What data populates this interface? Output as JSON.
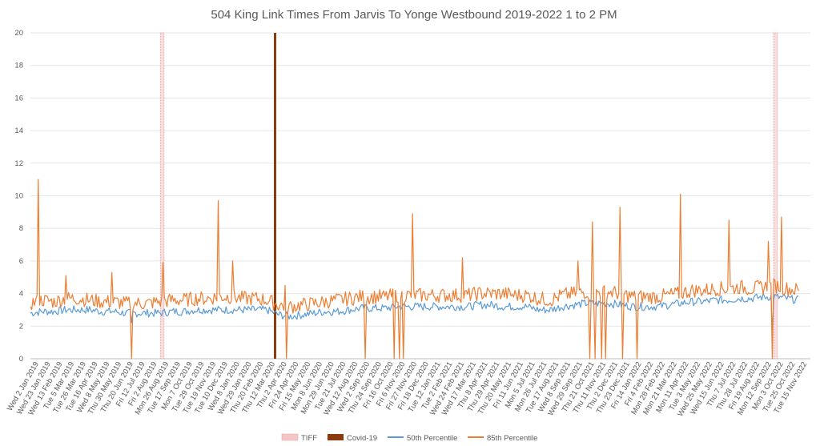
{
  "chart_data": {
    "type": "line",
    "title": "504 King Link Times From Jarvis To Yonge Westbound 2019-2022 1 to 2 PM",
    "xlabel": "",
    "ylabel": "",
    "ylim": [
      0,
      20
    ],
    "yticks": [
      "0",
      "2",
      "4",
      "6",
      "8",
      "10",
      "12",
      "14",
      "16",
      "18",
      "20"
    ],
    "grid": "horizontal",
    "legend": "bottom",
    "x_tick_labels": [
      "Wed 2 Jan 2019",
      "Wed 23 Jan 2019",
      "Wed 13 Feb 2019",
      "Tue 5 Mar 2019",
      "Tue 26 Mar 2019",
      "Tue 16 Apr 2019",
      "Wed 8 May 2019",
      "Thu 30 May 2019",
      "Thu 20 Jun 2019",
      "Fri 12 Jul 2019",
      "Fri 2 Aug 2019",
      "Mon 26 Aug 2019",
      "Tue 17 Sep 2019",
      "Mon 7 Oct 2019",
      "Tue 29 Oct 2019",
      "Tue 19 Nov 2019",
      "Tue 10 Dec 2019",
      "Wed 8 Jan 2020",
      "Wed 29 Jan 2020",
      "Thu 20 Feb 2020",
      "Thu 12 Mar 2020",
      "Thu 2 Apr 2020",
      "Fri 24 Apr 2020",
      "Fri 15 May 2020",
      "Mon 8 Jun 2020",
      "Mon 29 Jun 2020",
      "Tue 21 Jul 2020",
      "Wed 12 Aug 2020",
      "Wed 2 Sep 2020",
      "Thu 24 Sep 2020",
      "Fri 16 Oct 2020",
      "Fri 6 Nov 2020",
      "Fri 27 Nov 2020",
      "Fri 18 Dec 2020",
      "Tue 12 Jan 2021",
      "Tue 2 Feb 2021",
      "Wed 24 Feb 2021",
      "Wed 17 Mar 2021",
      "Thu 8 Apr 2021",
      "Thu 29 Apr 2021",
      "Thu 20 May 2021",
      "Fri 11 Jun 2021",
      "Mon 5 Jul 2021",
      "Mon 26 Jul 2021",
      "Tue 17 Aug 2021",
      "Wed 8 Sep 2021",
      "Wed 29 Sep 2021",
      "Thu 21 Oct 2021",
      "Thu 11 Nov 2021",
      "Thu 2 Dec 2021",
      "Thu 23 Dec 2021",
      "Fri 14 Jan 2022",
      "Fri 4 Feb 2022",
      "Mon 28 Feb 2022",
      "Mon 21 Mar 2022",
      "Mon 11 Apr 2022",
      "Tue 3 May 2022",
      "Wed 25 May 2022",
      "Wed 15 Jun 2022",
      "Thu 7 Jul 2022",
      "Thu 28 Jul 2022",
      "Fri 19 Aug 2022",
      "Mon 12 Sep 2022",
      "Mon 3 Oct 2022",
      "Tue 25 Oct 2022",
      "Tue 15 Nov 2022"
    ],
    "markers": [
      {
        "name": "TIFF",
        "color": "#e8a0a0",
        "x_from_tick": 11.0,
        "x_to_tick": 11.3
      },
      {
        "name": "TIFF",
        "color": "#e8a0a0",
        "x_from_tick": 62.9,
        "x_to_tick": 63.2
      },
      {
        "name": "Covid-19",
        "color": "#8b3a0e",
        "x_tick": 20.7
      }
    ],
    "series": [
      {
        "name": "50th Percentile",
        "color": "#5b9bd5",
        "mean": 2.9,
        "values_by_tick": [
          2.8,
          2.9,
          2.9,
          3.0,
          3.0,
          3.0,
          2.9,
          2.9,
          2.8,
          2.8,
          2.8,
          2.8,
          2.9,
          2.9,
          3.0,
          3.0,
          3.0,
          3.0,
          3.0,
          3.0,
          3.0,
          2.7,
          2.6,
          2.7,
          2.8,
          2.9,
          2.9,
          3.0,
          3.1,
          3.1,
          3.1,
          3.2,
          3.2,
          3.2,
          3.2,
          3.2,
          3.2,
          3.2,
          3.3,
          3.3,
          3.2,
          3.2,
          3.2,
          3.0,
          3.0,
          3.2,
          3.3,
          3.4,
          3.4,
          3.4,
          3.3,
          3.2,
          3.2,
          3.2,
          3.3,
          3.4,
          3.5,
          3.5,
          3.6,
          3.6,
          3.7,
          3.7,
          3.8,
          3.8,
          3.7,
          3.6
        ]
      },
      {
        "name": "85th Percentile",
        "color": "#ed7d31",
        "values_by_tick": [
          3.4,
          3.6,
          3.5,
          3.7,
          3.7,
          3.6,
          3.5,
          3.5,
          3.4,
          3.4,
          3.4,
          3.5,
          3.6,
          3.6,
          3.7,
          3.7,
          3.8,
          3.8,
          3.7,
          3.7,
          3.6,
          3.3,
          3.2,
          3.3,
          3.4,
          3.5,
          3.6,
          3.7,
          3.8,
          3.8,
          3.8,
          3.9,
          3.9,
          3.9,
          3.9,
          3.9,
          3.9,
          3.9,
          4.0,
          4.0,
          4.0,
          3.9,
          3.9,
          3.7,
          3.6,
          3.9,
          4.0,
          4.1,
          4.1,
          4.1,
          4.0,
          3.8,
          3.8,
          3.8,
          3.9,
          4.0,
          4.2,
          4.2,
          4.3,
          4.3,
          4.4,
          4.3,
          4.4,
          4.5,
          4.3,
          4.2
        ],
        "spikes": [
          {
            "x_tick": 0.7,
            "value": 11.0
          },
          {
            "x_tick": 3.0,
            "value": 5.1
          },
          {
            "x_tick": 6.9,
            "value": 5.3
          },
          {
            "x_tick": 11.2,
            "value": 5.9
          },
          {
            "x_tick": 15.9,
            "value": 9.7
          },
          {
            "x_tick": 17.1,
            "value": 6.0
          },
          {
            "x_tick": 21.6,
            "value": 4.5
          },
          {
            "x_tick": 32.3,
            "value": 8.9
          },
          {
            "x_tick": 36.6,
            "value": 6.2
          },
          {
            "x_tick": 39.5,
            "value": 6.3
          },
          {
            "x_tick": 46.3,
            "value": 6.0
          },
          {
            "x_tick": 47.6,
            "value": 8.4
          },
          {
            "x_tick": 49.5,
            "value": 10.7
          },
          {
            "x_tick": 49.9,
            "value": 9.3
          },
          {
            "x_tick": 55.0,
            "value": 10.1
          },
          {
            "x_tick": 59.1,
            "value": 8.5
          },
          {
            "x_tick": 62.4,
            "value": 7.2
          },
          {
            "x_tick": 63.6,
            "value": 8.7
          },
          {
            "x_tick": 65.1,
            "value": 7.6
          }
        ],
        "dips": [
          8.6,
          21.7,
          28.3,
          30.8,
          31.2,
          31.6,
          47.3,
          47.8,
          48.3,
          48.7,
          50.1,
          51.3,
          62.8
        ]
      }
    ]
  },
  "legend": {
    "tiff": "TIFF",
    "covid": "Covid-19",
    "p50": "50th Percentile",
    "p85": "85th Percentile"
  }
}
